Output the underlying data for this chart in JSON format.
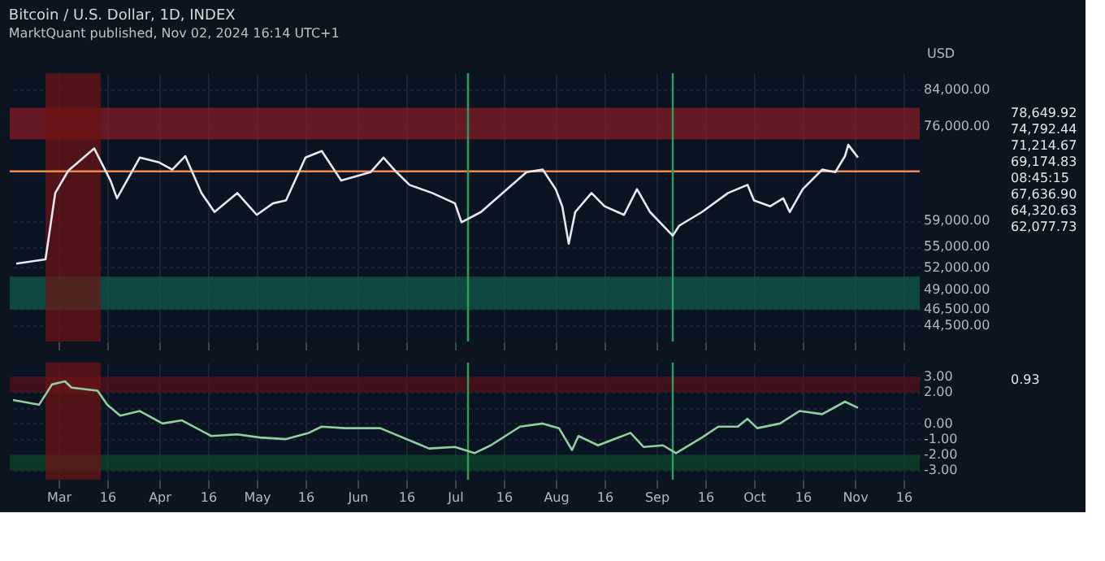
{
  "chart_data": [
    {
      "type": "line",
      "title": "Bitcoin / U.S. Dollar, 1D, INDEX",
      "subtitle": "MarktQuant published, Nov 02, 2024 16:14 UTC+1",
      "ylabel": "USD",
      "series": [
        {
          "color": "#e8e8f0",
          "x": [
            "2024-02-17",
            "2024-02-26",
            "2024-02-29",
            "2024-03-04",
            "2024-03-12",
            "2024-03-17",
            "2024-03-19",
            "2024-03-26",
            "2024-04-01",
            "2024-04-05",
            "2024-04-09",
            "2024-04-14",
            "2024-04-18",
            "2024-04-25",
            "2024-05-01",
            "2024-05-06",
            "2024-05-10",
            "2024-05-16",
            "2024-05-21",
            "2024-05-27",
            "2024-06-05",
            "2024-06-09",
            "2024-06-13",
            "2024-06-17",
            "2024-06-24",
            "2024-07-01",
            "2024-07-03",
            "2024-07-09",
            "2024-07-17",
            "2024-07-23",
            "2024-07-28",
            "2024-08-01",
            "2024-08-03",
            "2024-08-05",
            "2024-08-07",
            "2024-08-12",
            "2024-08-16",
            "2024-08-22",
            "2024-08-26",
            "2024-08-30",
            "2024-09-06",
            "2024-09-08",
            "2024-09-15",
            "2024-09-23",
            "2024-09-29",
            "2024-10-01",
            "2024-10-06",
            "2024-10-10",
            "2024-10-12",
            "2024-10-16",
            "2024-10-22",
            "2024-10-26",
            "2024-10-29",
            "2024-10-30",
            "2024-11-02"
          ],
          "values": [
            52540,
            53140,
            63520,
            67440,
            71610,
            65680,
            62620,
            69870,
            68960,
            67640,
            70140,
            63520,
            60360,
            63520,
            59900,
            61780,
            62260,
            69870,
            71110,
            65680,
            67180,
            69870,
            67180,
            64930,
            63520,
            61780,
            58720,
            60360,
            64180,
            67180,
            67640,
            64180,
            61300,
            55440,
            60360,
            63520,
            61300,
            59900,
            64180,
            60360,
            56640,
            58190,
            60360,
            63520,
            64930,
            62260,
            61300,
            62620,
            60360,
            64180,
            67640,
            67180,
            70140,
            72310,
            69870
          ]
        }
      ],
      "xlim": [
        "2024-02-15",
        "2024-11-21"
      ],
      "xticks": [
        "2024-03-01",
        "2024-03-16",
        "2024-04-01",
        "2024-04-16",
        "2024-05-01",
        "2024-05-16",
        "2024-06-01",
        "2024-06-16",
        "2024-07-01",
        "2024-07-16",
        "2024-08-01",
        "2024-08-16",
        "2024-09-01",
        "2024-09-16",
        "2024-10-01",
        "2024-10-16",
        "2024-11-01",
        "2024-11-16"
      ],
      "ylim": [
        42620,
        87660
      ],
      "log": true,
      "yticks": [
        {
          "value": 44500,
          "label": "44,500.00"
        },
        {
          "value": 46500,
          "label": "46,500.00"
        },
        {
          "value": 49000,
          "label": "49,000.00"
        },
        {
          "value": 52000,
          "label": "52,000.00"
        },
        {
          "value": 55000,
          "label": "55,000.00"
        },
        {
          "value": 59000,
          "label": "59,000.00"
        },
        {
          "value": 76000,
          "label": "76,000.00"
        },
        {
          "value": 84000,
          "label": "84,000.00"
        }
      ],
      "grid": true,
      "tick_labels": "y",
      "bands": [
        {
          "axis": "y",
          "from": 73340,
          "to": 79870,
          "color": "#8b1c24"
        },
        {
          "axis": "y",
          "from": 46430,
          "to": 50740,
          "color": "#0f5e50"
        },
        {
          "axis": "x",
          "from": "2024-02-26",
          "to": "2024-03-14",
          "color": "#6e1414"
        }
      ],
      "ref_lines": [
        {
          "axis": "y",
          "value": 67340,
          "color": "#f08a4b"
        },
        {
          "axis": "x",
          "value": "2024-07-05",
          "color": "#2e9e5a"
        },
        {
          "axis": "x",
          "value": "2024-09-06",
          "color": "#2e9e5a"
        }
      ],
      "annotations": [
        "78,649.92",
        "74,792.44",
        "71,214.67",
        "69,174.83",
        "08:45:15",
        "67,636.90",
        "64,320.63",
        "62,077.73"
      ]
    },
    {
      "type": "line",
      "series": [
        {
          "color": "#8fcfa0",
          "x": [
            "2024-02-16",
            "2024-02-24",
            "2024-02-28",
            "2024-03-03",
            "2024-03-05",
            "2024-03-13",
            "2024-03-16",
            "2024-03-20",
            "2024-03-26",
            "2024-04-02",
            "2024-04-08",
            "2024-04-17",
            "2024-04-25",
            "2024-05-02",
            "2024-05-10",
            "2024-05-17",
            "2024-05-21",
            "2024-05-28",
            "2024-06-08",
            "2024-06-23",
            "2024-07-01",
            "2024-07-07",
            "2024-07-12",
            "2024-07-21",
            "2024-07-28",
            "2024-08-02",
            "2024-08-06",
            "2024-08-08",
            "2024-08-14",
            "2024-08-24",
            "2024-08-28",
            "2024-09-03",
            "2024-09-07",
            "2024-09-15",
            "2024-09-20",
            "2024-09-26",
            "2024-09-29",
            "2024-10-02",
            "2024-10-09",
            "2024-10-15",
            "2024-10-22",
            "2024-10-29",
            "2024-11-02"
          ],
          "values": [
            1.5,
            1.2,
            2.5,
            2.7,
            2.3,
            2.1,
            1.2,
            0.5,
            0.8,
            0,
            0.2,
            -0.8,
            -0.7,
            -0.9,
            -1.0,
            -0.6,
            -0.2,
            -0.3,
            -0.3,
            -1.6,
            -1.5,
            -1.9,
            -1.4,
            -0.2,
            0,
            -0.3,
            -1.7,
            -0.8,
            -1.4,
            -0.6,
            -1.5,
            -1.4,
            -1.9,
            -0.9,
            -0.2,
            -0.2,
            0.3,
            -0.3,
            0,
            0.8,
            0.6,
            1.4,
            1.0
          ]
        }
      ],
      "xlim": [
        "2024-02-15",
        "2024-11-21"
      ],
      "xticks": [
        {
          "value": "2024-03-01",
          "label": "Mar"
        },
        {
          "value": "2024-03-16",
          "label": "16"
        },
        {
          "value": "2024-04-01",
          "label": "Apr"
        },
        {
          "value": "2024-04-16",
          "label": "16"
        },
        {
          "value": "2024-05-01",
          "label": "May"
        },
        {
          "value": "2024-05-16",
          "label": "16"
        },
        {
          "value": "2024-06-01",
          "label": "Jun"
        },
        {
          "value": "2024-06-16",
          "label": "16"
        },
        {
          "value": "2024-07-01",
          "label": "Jul"
        },
        {
          "value": "2024-07-16",
          "label": "16"
        },
        {
          "value": "2024-08-01",
          "label": "Aug"
        },
        {
          "value": "2024-08-16",
          "label": "16"
        },
        {
          "value": "2024-09-01",
          "label": "Sep"
        },
        {
          "value": "2024-09-16",
          "label": "16"
        },
        {
          "value": "2024-10-01",
          "label": "Oct"
        },
        {
          "value": "2024-10-16",
          "label": "16"
        },
        {
          "value": "2024-11-01",
          "label": "Nov"
        },
        {
          "value": "2024-11-16",
          "label": "16"
        }
      ],
      "ylim": [
        -3.6,
        3.9
      ],
      "yticks": [
        {
          "value": 3,
          "label": "3.00"
        },
        {
          "value": 2,
          "label": "2.00"
        },
        {
          "value": 1,
          "label": null
        },
        {
          "value": 0,
          "label": "0.00"
        },
        {
          "value": -1,
          "label": "-1.00"
        },
        {
          "value": -2,
          "label": "-2.00"
        },
        {
          "value": -3,
          "label": "-3.00"
        }
      ],
      "grid": true,
      "bands": [
        {
          "axis": "y",
          "from": 2,
          "to": 3,
          "color": "#5a1018"
        },
        {
          "axis": "y",
          "from": -3,
          "to": -2,
          "color": "#0b4a2a"
        },
        {
          "axis": "x",
          "from": "2024-02-26",
          "to": "2024-03-14",
          "color": "#6e1414"
        }
      ],
      "ref_lines": [
        {
          "axis": "x",
          "value": "2024-07-05",
          "color": "#2e9e5a"
        },
        {
          "axis": "x",
          "value": "2024-09-06",
          "color": "#2e9e5a"
        }
      ],
      "annotations": [
        "0.93"
      ]
    }
  ]
}
